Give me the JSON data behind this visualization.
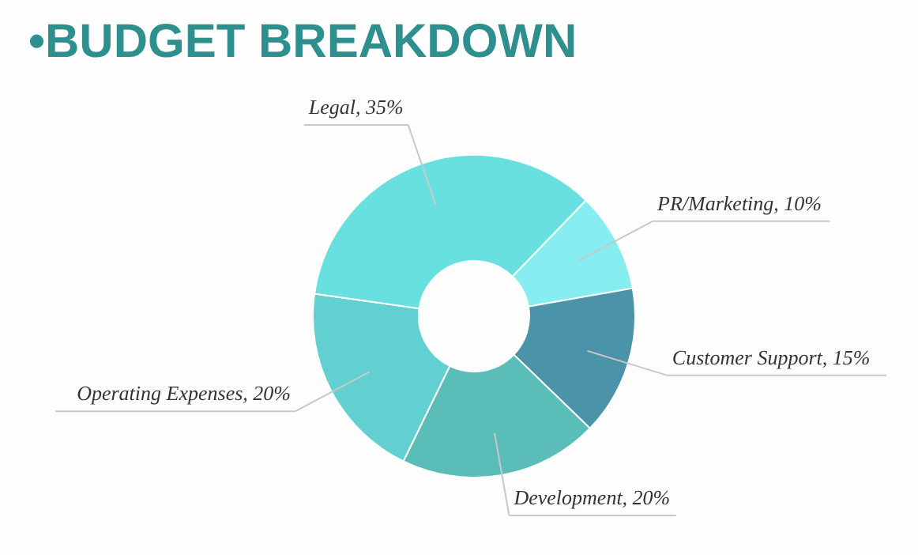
{
  "chart_data": {
    "type": "donut",
    "title": "•BUDGET BREAKDOWN",
    "categories": [
      "PR/Marketing, 10%",
      "Customer Support, 15%",
      "Development, 20%",
      "Operating Expenses, 20%",
      "Legal, 35%"
    ],
    "values": [
      10,
      15,
      20,
      20,
      35
    ],
    "colors": [
      "#86eef0",
      "#4a93a8",
      "#5bbdb8",
      "#62d0d0",
      "#68e0e0"
    ]
  }
}
